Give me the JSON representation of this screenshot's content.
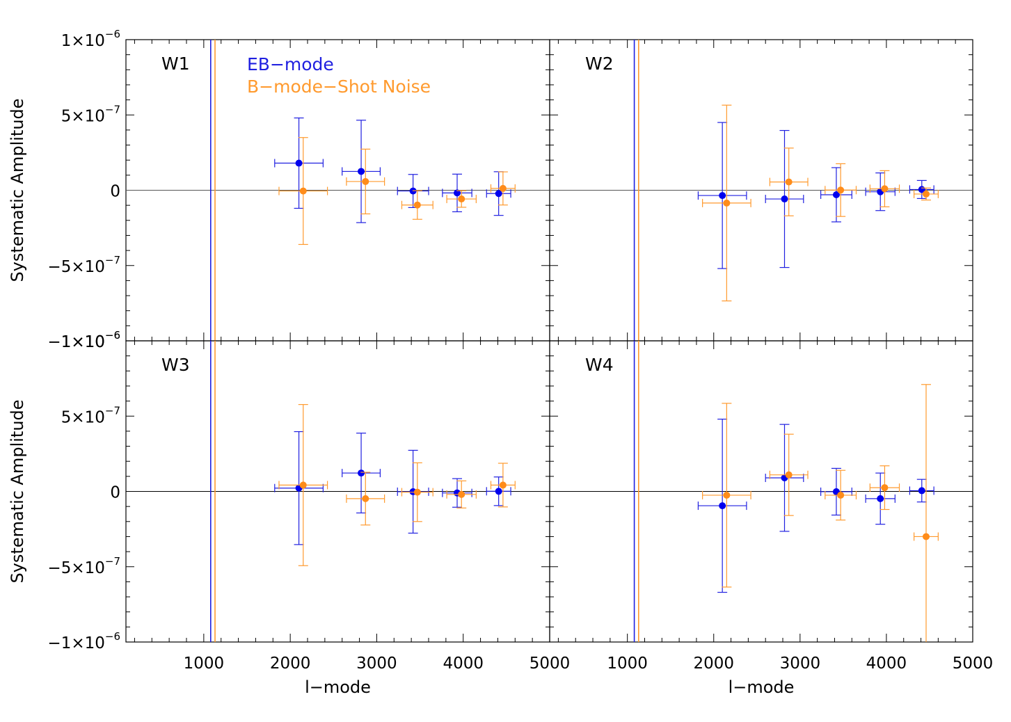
{
  "colors": {
    "eb": "#1f1fe0",
    "eb_point": "#0000ee",
    "b": "#ff9a2e",
    "b_point": "#ff8c1a",
    "axis": "#000000"
  },
  "legend": {
    "eb_label": "EB−mode",
    "b_label": "B−mode−Shot Noise"
  },
  "chart_data": [
    {
      "type": "scatter",
      "panel_label": "W1",
      "xlabel": "",
      "ylabel": "Systematic Amplitude",
      "xlim": [
        100,
        5000
      ],
      "ylim": [
        -1e-06,
        1e-06
      ],
      "x_ticks": [],
      "y_ticks": [
        {
          "value": 1e-06,
          "mant": "1×10",
          "exp": "−6"
        },
        {
          "value": 5e-07,
          "mant": "5×10",
          "exp": "−7"
        },
        {
          "value": 0,
          "mant": "0",
          "exp": ""
        },
        {
          "value": -5e-07,
          "mant": "−5×10",
          "exp": "−7"
        },
        {
          "value": -1e-06,
          "mant": "−1×10",
          "exp": "−6"
        }
      ],
      "vlines": [
        {
          "series": "eb",
          "x": 1080
        },
        {
          "series": "b",
          "x": 1130
        }
      ],
      "series": [
        {
          "key": "eb",
          "points": [
            {
              "x": 2100,
              "y": 1.8e-07,
              "xerr": 280,
              "yerr_lo": 3e-07,
              "yerr_hi": 3e-07
            },
            {
              "x": 2820,
              "y": 1.25e-07,
              "xerr": 220,
              "yerr_lo": 3.4e-07,
              "yerr_hi": 3.4e-07
            },
            {
              "x": 3420,
              "y": -5e-09,
              "xerr": 180,
              "yerr_lo": 1.1e-07,
              "yerr_hi": 1.1e-07
            },
            {
              "x": 3930,
              "y": -1.8e-08,
              "xerr": 170,
              "yerr_lo": 1.25e-07,
              "yerr_hi": 1.25e-07
            },
            {
              "x": 4410,
              "y": -2.2e-08,
              "xerr": 140,
              "yerr_lo": 1.45e-07,
              "yerr_hi": 1.45e-07
            }
          ]
        },
        {
          "key": "b",
          "points": [
            {
              "x": 2150,
              "y": -5e-09,
              "xerr": 280,
              "yerr_lo": 3.55e-07,
              "yerr_hi": 3.55e-07
            },
            {
              "x": 2870,
              "y": 5.8e-08,
              "xerr": 220,
              "yerr_lo": 2.15e-07,
              "yerr_hi": 2.15e-07
            },
            {
              "x": 3470,
              "y": -9.8e-08,
              "xerr": 180,
              "yerr_lo": 9.5e-08,
              "yerr_hi": 9.5e-08
            },
            {
              "x": 3980,
              "y": -5.8e-08,
              "xerr": 170,
              "yerr_lo": 5.5e-08,
              "yerr_hi": 5.5e-08
            },
            {
              "x": 4460,
              "y": 1.2e-08,
              "xerr": 140,
              "yerr_lo": 1.1e-07,
              "yerr_hi": 1.1e-07
            }
          ]
        }
      ]
    },
    {
      "type": "scatter",
      "panel_label": "W2",
      "xlabel": "",
      "ylabel": "",
      "xlim": [
        100,
        5000
      ],
      "ylim": [
        -1e-06,
        1e-06
      ],
      "x_ticks": [],
      "y_ticks": [],
      "vlines": [
        {
          "series": "eb",
          "x": 1080
        },
        {
          "series": "b",
          "x": 1130
        }
      ],
      "series": [
        {
          "key": "eb",
          "points": [
            {
              "x": 2100,
              "y": -3.5e-08,
              "xerr": 280,
              "yerr_lo": 4.85e-07,
              "yerr_hi": 4.85e-07
            },
            {
              "x": 2820,
              "y": -5.8e-08,
              "xerr": 220,
              "yerr_lo": 4.55e-07,
              "yerr_hi": 4.55e-07
            },
            {
              "x": 3420,
              "y": -3e-08,
              "xerr": 180,
              "yerr_lo": 1.8e-07,
              "yerr_hi": 1.8e-07
            },
            {
              "x": 3930,
              "y": -1e-08,
              "xerr": 170,
              "yerr_lo": 1.25e-07,
              "yerr_hi": 1.25e-07
            },
            {
              "x": 4410,
              "y": 5e-09,
              "xerr": 140,
              "yerr_lo": 6e-08,
              "yerr_hi": 6e-08
            }
          ]
        },
        {
          "key": "b",
          "points": [
            {
              "x": 2150,
              "y": -8.5e-08,
              "xerr": 280,
              "yerr_lo": 6.5e-07,
              "yerr_hi": 6.5e-07
            },
            {
              "x": 2870,
              "y": 5.5e-08,
              "xerr": 220,
              "yerr_lo": 2.25e-07,
              "yerr_hi": 2.25e-07
            },
            {
              "x": 3470,
              "y": 1e-09,
              "xerr": 180,
              "yerr_lo": 1.75e-07,
              "yerr_hi": 1.75e-07
            },
            {
              "x": 3980,
              "y": 1e-08,
              "xerr": 170,
              "yerr_lo": 1.2e-07,
              "yerr_hi": 1.2e-07
            },
            {
              "x": 4460,
              "y": -2.5e-08,
              "xerr": 140,
              "yerr_lo": 4e-08,
              "yerr_hi": 4e-08
            }
          ]
        }
      ]
    },
    {
      "type": "scatter",
      "panel_label": "W3",
      "xlabel": "l−mode",
      "ylabel": "Systematic Amplitude",
      "xlim": [
        100,
        5000
      ],
      "ylim": [
        -1e-06,
        1e-06
      ],
      "x_ticks": [
        {
          "value": 1000,
          "label": "1000"
        },
        {
          "value": 2000,
          "label": "2000"
        },
        {
          "value": 3000,
          "label": "3000"
        },
        {
          "value": 4000,
          "label": "4000"
        },
        {
          "value": 5000,
          "label": "5000"
        }
      ],
      "y_ticks": [
        {
          "value": 1e-06,
          "mant": "1×10",
          "exp": "−6"
        },
        {
          "value": 5e-07,
          "mant": "5×10",
          "exp": "−7"
        },
        {
          "value": 0,
          "mant": "0",
          "exp": ""
        },
        {
          "value": -5e-07,
          "mant": "−5×10",
          "exp": "−7"
        },
        {
          "value": -1e-06,
          "mant": "−1×10",
          "exp": "−6"
        }
      ],
      "vlines": [
        {
          "series": "eb",
          "x": 1080
        },
        {
          "series": "b",
          "x": 1130
        }
      ],
      "series": [
        {
          "key": "eb",
          "points": [
            {
              "x": 2100,
              "y": 2.2e-08,
              "xerr": 280,
              "yerr_lo": 3.75e-07,
              "yerr_hi": 3.75e-07
            },
            {
              "x": 2820,
              "y": 1.22e-07,
              "xerr": 220,
              "yerr_lo": 2.65e-07,
              "yerr_hi": 2.65e-07
            },
            {
              "x": 3420,
              "y": -2e-09,
              "xerr": 180,
              "yerr_lo": 2.75e-07,
              "yerr_hi": 2.75e-07
            },
            {
              "x": 3930,
              "y": -1e-08,
              "xerr": 170,
              "yerr_lo": 9.5e-08,
              "yerr_hi": 9.5e-08
            },
            {
              "x": 4410,
              "y": 1e-09,
              "xerr": 140,
              "yerr_lo": 9.5e-08,
              "yerr_hi": 9.5e-08
            }
          ]
        },
        {
          "key": "b",
          "points": [
            {
              "x": 2150,
              "y": 4.2e-08,
              "xerr": 280,
              "yerr_lo": 5.35e-07,
              "yerr_hi": 5.35e-07
            },
            {
              "x": 2870,
              "y": -4.8e-08,
              "xerr": 220,
              "yerr_lo": 1.75e-07,
              "yerr_hi": 1.75e-07
            },
            {
              "x": 3470,
              "y": -5e-09,
              "xerr": 180,
              "yerr_lo": 1.95e-07,
              "yerr_hi": 1.95e-07
            },
            {
              "x": 3980,
              "y": -2e-08,
              "xerr": 170,
              "yerr_lo": 9e-08,
              "yerr_hi": 9e-08
            },
            {
              "x": 4460,
              "y": 4.2e-08,
              "xerr": 140,
              "yerr_lo": 1.45e-07,
              "yerr_hi": 1.45e-07
            }
          ]
        }
      ]
    },
    {
      "type": "scatter",
      "panel_label": "W4",
      "xlabel": "l−mode",
      "ylabel": "",
      "xlim": [
        100,
        5000
      ],
      "ylim": [
        -1e-06,
        1e-06
      ],
      "x_ticks": [
        {
          "value": 1000,
          "label": "1000"
        },
        {
          "value": 2000,
          "label": "2000"
        },
        {
          "value": 3000,
          "label": "3000"
        },
        {
          "value": 4000,
          "label": "4000"
        },
        {
          "value": 5000,
          "label": "5000"
        }
      ],
      "y_ticks": [],
      "vlines": [
        {
          "series": "eb",
          "x": 1080
        },
        {
          "series": "b",
          "x": 1130
        }
      ],
      "series": [
        {
          "key": "eb",
          "points": [
            {
              "x": 2100,
              "y": -9.5e-08,
              "xerr": 280,
              "yerr_lo": 5.75e-07,
              "yerr_hi": 5.75e-07
            },
            {
              "x": 2820,
              "y": 9e-08,
              "xerr": 220,
              "yerr_lo": 3.55e-07,
              "yerr_hi": 3.55e-07
            },
            {
              "x": 3420,
              "y": -2e-09,
              "xerr": 180,
              "yerr_lo": 1.55e-07,
              "yerr_hi": 1.55e-07
            },
            {
              "x": 3930,
              "y": -4.8e-08,
              "xerr": 170,
              "yerr_lo": 1.7e-07,
              "yerr_hi": 1.7e-07
            },
            {
              "x": 4410,
              "y": 5e-09,
              "xerr": 140,
              "yerr_lo": 7.5e-08,
              "yerr_hi": 7.5e-08
            }
          ]
        },
        {
          "key": "b",
          "points": [
            {
              "x": 2150,
              "y": -2.5e-08,
              "xerr": 280,
              "yerr_lo": 6.1e-07,
              "yerr_hi": 6.1e-07
            },
            {
              "x": 2870,
              "y": 1.1e-07,
              "xerr": 220,
              "yerr_lo": 2.7e-07,
              "yerr_hi": 2.7e-07
            },
            {
              "x": 3470,
              "y": -2.5e-08,
              "xerr": 180,
              "yerr_lo": 1.65e-07,
              "yerr_hi": 1.65e-07
            },
            {
              "x": 3980,
              "y": 2.5e-08,
              "xerr": 170,
              "yerr_lo": 1.45e-07,
              "yerr_hi": 1.45e-07
            },
            {
              "x": 4460,
              "y": -3e-07,
              "xerr": 140,
              "yerr_lo": 7.2e-07,
              "yerr_hi": 1.01e-06
            }
          ]
        }
      ]
    }
  ]
}
